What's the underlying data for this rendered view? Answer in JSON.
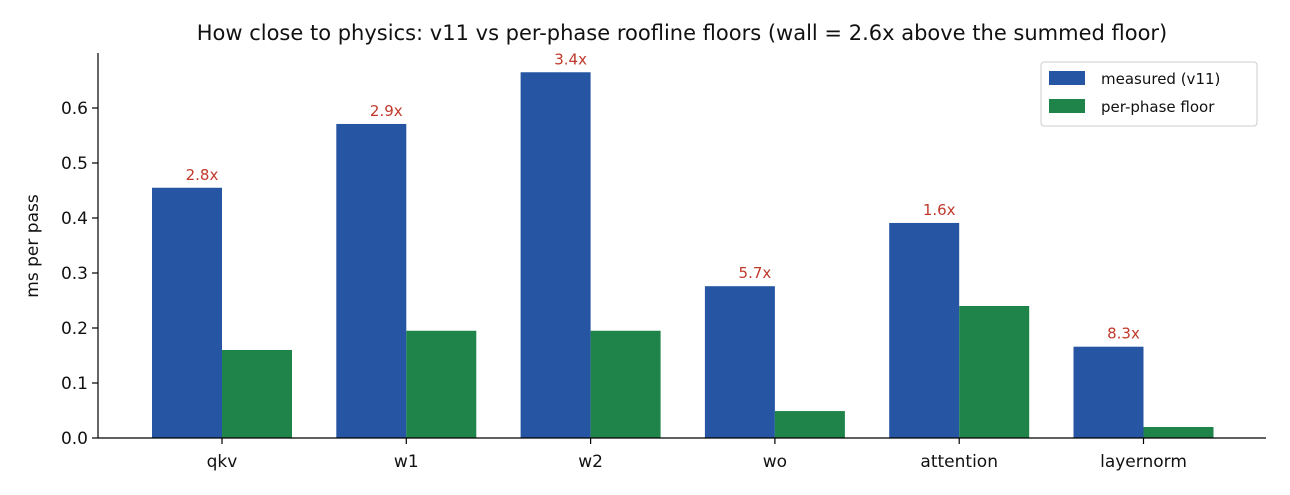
{
  "chart_data": {
    "type": "bar",
    "title": "How close to physics: v11 vs per-phase roofline floors (wall = 2.6x above the summed floor)",
    "xlabel": "",
    "ylabel": "ms per pass",
    "ylim": [
      0,
      0.7
    ],
    "yticks": [
      "0.0",
      "0.1",
      "0.2",
      "0.3",
      "0.4",
      "0.5",
      "0.6"
    ],
    "categories": [
      "qkv",
      "w1",
      "w2",
      "wo",
      "attention",
      "layernorm"
    ],
    "series": [
      {
        "name": "measured (v11)",
        "color": "#2656a3",
        "values": [
          0.455,
          0.571,
          0.665,
          0.276,
          0.391,
          0.166
        ]
      },
      {
        "name": "per-phase floor",
        "color": "#1f844a",
        "values": [
          0.16,
          0.195,
          0.195,
          0.049,
          0.24,
          0.02
        ]
      }
    ],
    "ratio_labels": [
      "2.8x",
      "2.9x",
      "3.4x",
      "5.7x",
      "1.6x",
      "8.3x"
    ],
    "ratio_label_color": "#c0392b",
    "legend_position": "top-right",
    "grid": false
  }
}
